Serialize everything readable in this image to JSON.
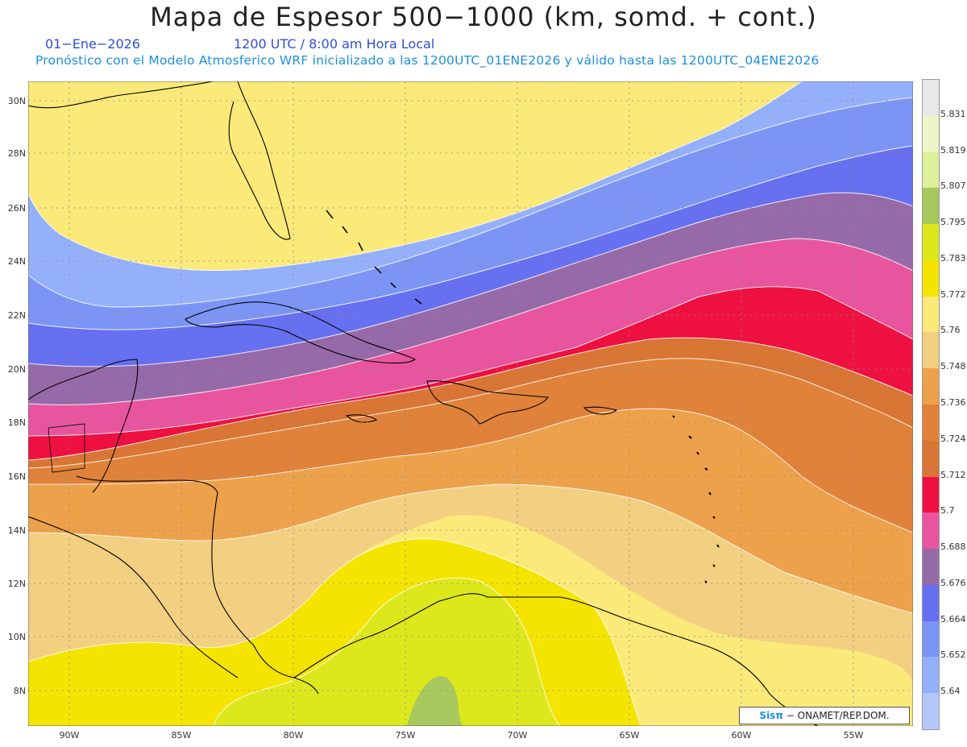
{
  "title": "Mapa de Espesor 500−1000 (km, somd. + cont.)",
  "date": "01−Ene−2026",
  "time": "1200 UTC / 8:00 am Hora Local",
  "forecast_text": "Pronóstico con el Modelo Atmosferico WRF inicializado a las 1200UTC_01ENE2026 y válido hasta las  1200UTC_04ENE2026",
  "lat_labels": [
    "30N",
    "28N",
    "26N",
    "24N",
    "22N",
    "20N",
    "18N",
    "16N",
    "14N",
    "12N",
    "10N",
    "8N"
  ],
  "lon_labels": [
    "90W",
    "85W",
    "80W",
    "75W",
    "70W",
    "65W",
    "60W",
    "55W"
  ],
  "colorbar": {
    "labels": [
      "5.831",
      "5.819",
      "5.807",
      "5.795",
      "5.783",
      "5.772",
      "5.76",
      "5.748",
      "5.736",
      "5.724",
      "5.712",
      "5.7",
      "5.688",
      "5.676",
      "5.664",
      "5.652",
      "5.64"
    ],
    "colors": [
      "#e8e8e8",
      "#eef5c8",
      "#dff09a",
      "#a6c85c",
      "#dde81c",
      "#f5e400",
      "#fbe97a",
      "#f3cf82",
      "#eda14a",
      "#e0823a",
      "#d97535",
      "#ee1040",
      "#e8559e",
      "#966aa8",
      "#6770f0",
      "#7c95f5",
      "#95b0fb",
      "#b4c7fb"
    ]
  },
  "credit": {
    "sis": "Sisπ",
    "org": "− ONAMET/REP.DOM."
  },
  "colors": {
    "c5640": "#b4c7fb",
    "c5652": "#95b0fb",
    "c5664": "#7c95f5",
    "c5676": "#6770f0",
    "c5688": "#966aa8",
    "c5700": "#e8559e",
    "c5712": "#ee1040",
    "c5724": "#d97535",
    "c5736": "#e0823a",
    "c5748": "#eda14a",
    "c5760": "#f3cf82",
    "c5772": "#fbe97a",
    "c5783": "#f5e400",
    "c5795": "#dde81c",
    "c5807": "#a6c85c"
  }
}
